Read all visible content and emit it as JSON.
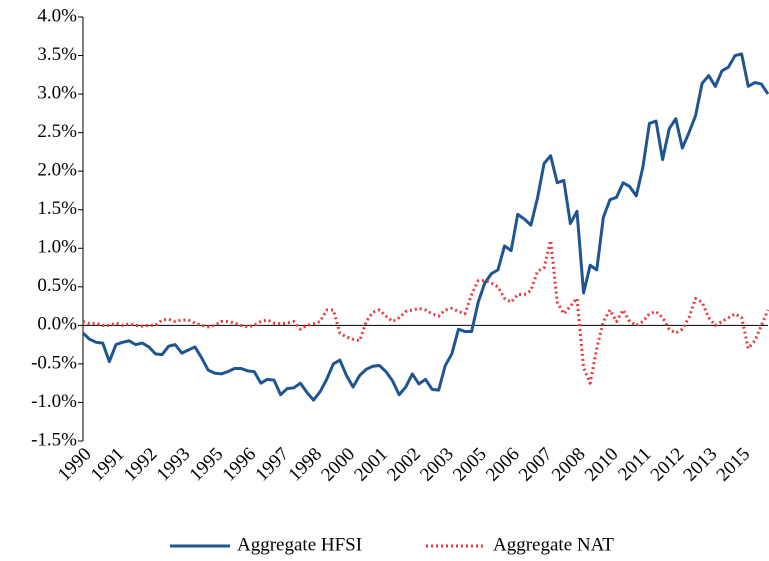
{
  "chart_data": {
    "type": "line",
    "categories": [
      "1990",
      null,
      null,
      null,
      null,
      "1991",
      null,
      null,
      null,
      null,
      "1992",
      null,
      null,
      null,
      null,
      "1993",
      null,
      null,
      null,
      null,
      "1995",
      null,
      null,
      null,
      null,
      "1996",
      null,
      null,
      null,
      null,
      "1997",
      null,
      null,
      null,
      null,
      "1998",
      null,
      null,
      null,
      null,
      "2000",
      null,
      null,
      null,
      null,
      "2001",
      null,
      null,
      null,
      null,
      "2002",
      null,
      null,
      null,
      null,
      "2003",
      null,
      null,
      null,
      null,
      "2005",
      null,
      null,
      null,
      null,
      "2006",
      null,
      null,
      null,
      null,
      "2007",
      null,
      null,
      null,
      null,
      "2008",
      null,
      null,
      null,
      null,
      "2010",
      null,
      null,
      null,
      null,
      "2011",
      null,
      null,
      null,
      null,
      "2012",
      null,
      null,
      null,
      null,
      "2013",
      null,
      null,
      null,
      null,
      "2015",
      null,
      null,
      null,
      null
    ],
    "series": [
      {
        "name": "Aggregate HFSI",
        "color": "#1f5591",
        "style": "solid",
        "values": [
          -0.1,
          -0.18,
          -0.22,
          -0.23,
          -0.47,
          -0.25,
          -0.22,
          -0.2,
          -0.25,
          -0.23,
          -0.28,
          -0.37,
          -0.38,
          -0.27,
          -0.25,
          -0.36,
          -0.32,
          -0.28,
          -0.42,
          -0.58,
          -0.62,
          -0.63,
          -0.6,
          -0.56,
          -0.56,
          -0.59,
          -0.6,
          -0.75,
          -0.7,
          -0.71,
          -0.9,
          -0.82,
          -0.81,
          -0.75,
          -0.87,
          -0.97,
          -0.86,
          -0.7,
          -0.5,
          -0.45,
          -0.65,
          -0.8,
          -0.65,
          -0.57,
          -0.53,
          -0.52,
          -0.6,
          -0.72,
          -0.9,
          -0.8,
          -0.63,
          -0.76,
          -0.7,
          -0.83,
          -0.84,
          -0.52,
          -0.37,
          -0.05,
          -0.08,
          -0.08,
          0.3,
          0.55,
          0.67,
          0.72,
          1.03,
          0.97,
          1.44,
          1.38,
          1.3,
          1.65,
          2.1,
          2.2,
          1.85,
          1.88,
          1.32,
          1.48,
          0.42,
          0.78,
          0.72,
          1.4,
          1.63,
          1.66,
          1.85,
          1.8,
          1.68,
          2.05,
          2.62,
          2.65,
          2.15,
          2.55,
          2.68,
          2.3,
          2.5,
          2.72,
          3.14,
          3.24,
          3.1,
          3.3,
          3.35,
          3.5,
          3.52,
          3.1,
          3.15,
          3.13,
          3.0
        ]
      },
      {
        "name": "Aggregate NAT",
        "color": "#e8383d",
        "style": "dotted",
        "values": [
          0.05,
          0.02,
          0.03,
          0.0,
          0.0,
          0.03,
          0.0,
          0.02,
          0.0,
          -0.01,
          0.0,
          0.0,
          0.07,
          0.08,
          0.05,
          0.07,
          0.07,
          0.03,
          0.0,
          -0.02,
          0.0,
          0.05,
          0.05,
          0.03,
          0.0,
          -0.02,
          0.0,
          0.05,
          0.07,
          0.03,
          0.02,
          0.03,
          0.05,
          -0.05,
          0.0,
          0.02,
          0.05,
          0.2,
          0.2,
          -0.1,
          -0.15,
          -0.18,
          -0.2,
          0.05,
          0.17,
          0.2,
          0.12,
          0.05,
          0.1,
          0.18,
          0.2,
          0.22,
          0.2,
          0.15,
          0.12,
          0.2,
          0.22,
          0.18,
          0.15,
          0.4,
          0.58,
          0.58,
          0.55,
          0.5,
          0.35,
          0.3,
          0.4,
          0.4,
          0.45,
          0.7,
          0.75,
          1.1,
          0.3,
          0.15,
          0.25,
          0.35,
          -0.55,
          -0.75,
          -0.3,
          0.05,
          0.2,
          0.05,
          0.2,
          0.05,
          0.0,
          0.05,
          0.15,
          0.18,
          0.1,
          -0.05,
          -0.1,
          -0.05,
          0.1,
          0.35,
          0.3,
          0.1,
          0.0,
          0.05,
          0.1,
          0.15,
          0.1,
          -0.3,
          -0.2,
          0.0,
          0.2
        ]
      }
    ],
    "ylim": [
      -1.5,
      4.0
    ],
    "yticks": [
      {
        "value": -1.5,
        "label": "-1.5%"
      },
      {
        "value": -1.0,
        "label": "-1.0%"
      },
      {
        "value": -0.5,
        "label": "-0.5%"
      },
      {
        "value": 0,
        "label": "0.0%"
      },
      {
        "value": 0.5,
        "label": "0.5%"
      },
      {
        "value": 1.0,
        "label": "1.0%"
      },
      {
        "value": 1.5,
        "label": "1.5%"
      },
      {
        "value": 2.0,
        "label": "2.0%"
      },
      {
        "value": 2.5,
        "label": "2.5%"
      },
      {
        "value": 3.0,
        "label": "3.0%"
      },
      {
        "value": 3.5,
        "label": "3.5%"
      },
      {
        "value": 4.0,
        "label": "4.0%"
      }
    ],
    "legend": "bottom"
  }
}
